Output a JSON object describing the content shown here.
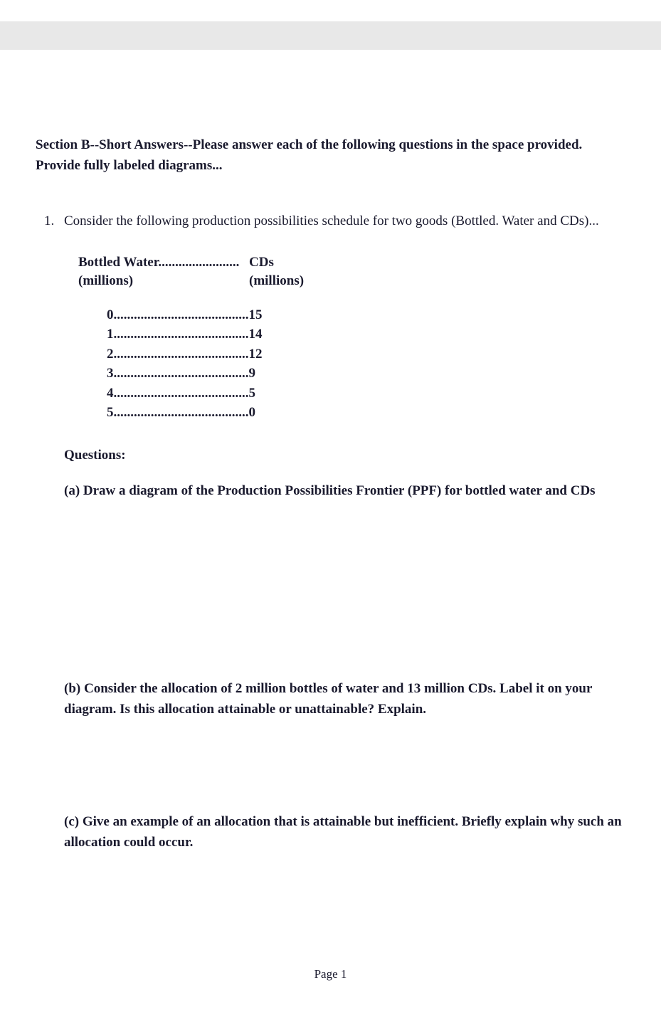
{
  "section_header": "Section B--Short Answers--Please answer each of the following questions in the space provided. Provide fully labeled diagrams...",
  "q1": {
    "number": "1.",
    "intro": "Consider the following production possibilities schedule for two goods (Bottled. Water and CDs)...",
    "table": {
      "col1_label": "Bottled Water",
      "col1_dots": "........................",
      "col2_label": "CDs",
      "col1_sub": "(millions)",
      "col2_sub": "(millions)",
      "rows": [
        {
          "left": "0",
          "dots": "........................................",
          "right": "15"
        },
        {
          "left": "1",
          "dots": "........................................",
          "right": "14"
        },
        {
          "left": "2",
          "dots": "........................................",
          "right": "12"
        },
        {
          "left": "3",
          "dots": "........................................",
          "right": "9"
        },
        {
          "left": "4",
          "dots": "........................................",
          "right": "5"
        },
        {
          "left": "5",
          "dots": "........................................",
          "right": "0"
        }
      ]
    },
    "questions_label": "Questions:",
    "sub_a": "(a) Draw a diagram of the Production Possibilities Frontier (PPF) for bottled water and CDs",
    "sub_b": "(b) Consider the allocation of 2 million bottles of water and 13 million CDs. Label it on your diagram. Is this allocation attainable or unattainable? Explain.",
    "sub_c": "(c) Give an example of an allocation that is attainable but inefficient. Briefly explain why such an allocation could occur."
  },
  "footer": "Page 1"
}
